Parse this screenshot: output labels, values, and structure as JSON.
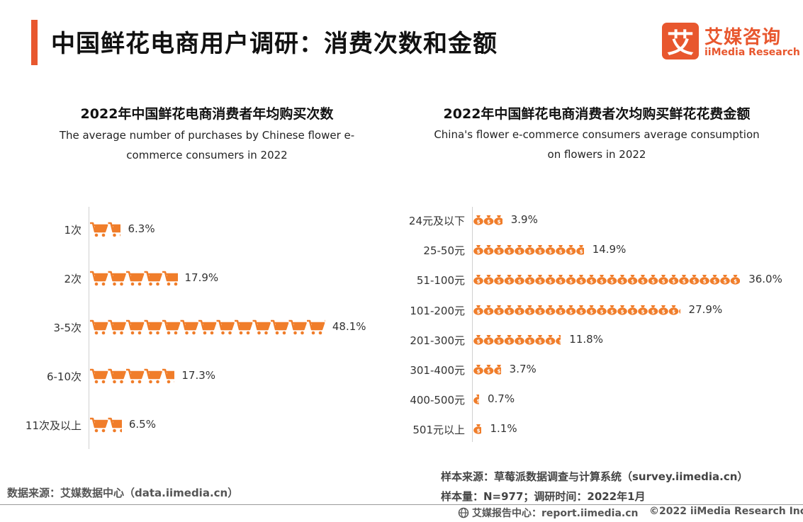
{
  "page": {
    "title": "中国鲜花电商用户调研：消费次数和金额"
  },
  "brand": {
    "logo_char": "艾",
    "name_cn": "艾媒咨询",
    "name_en": "iiMedia Research",
    "accent_color": "#e8572e",
    "icon_color": "#f07d2a"
  },
  "chart_data": [
    {
      "type": "bar",
      "orientation": "horizontal",
      "icon": "shopping-cart-icon",
      "title": "2022年中国鲜花电商消费者年均购买次数",
      "subtitle": "The average number of purchases by Chinese flower e-commerce consumers in 2022",
      "categories": [
        "1次",
        "2次",
        "3-5次",
        "6-10次",
        "11次及以上"
      ],
      "values": [
        6.3,
        17.9,
        48.1,
        17.3,
        6.5
      ],
      "value_labels": [
        "6.3%",
        "17.9%",
        "48.1%",
        "17.3%",
        "6.5%"
      ],
      "unit": "%",
      "xlabel": "",
      "ylabel": ""
    },
    {
      "type": "bar",
      "orientation": "horizontal",
      "icon": "money-bag-icon",
      "title": "2022年中国鲜花电商消费者次均购买鲜花花费金额",
      "subtitle": "China's flower e-commerce consumers average consumption on flowers in 2022",
      "categories": [
        "24元及以下",
        "25-50元",
        "51-100元",
        "101-200元",
        "201-300元",
        "301-400元",
        "400-500元",
        "501元以上"
      ],
      "values": [
        3.9,
        14.9,
        36.0,
        27.9,
        11.8,
        3.7,
        0.7,
        1.1
      ],
      "value_labels": [
        "3.9%",
        "14.9%",
        "36.0%",
        "27.9%",
        "11.8%",
        "3.7%",
        "0.7%",
        "1.1%"
      ],
      "unit": "%",
      "xlabel": "",
      "ylabel": ""
    }
  ],
  "source": {
    "data_source": "数据来源：艾媒数据中心（data.iimedia.cn）",
    "sample_source": "样本来源：草莓派数据调查与计算系统（survey.iimedia.cn）",
    "sample_size": "样本量：N=977；调研时间：2022年1月"
  },
  "footer": {
    "report_center": "艾媒报告中心：report.iimedia.cn",
    "copyright": "©2022 iiMedia Research Inc"
  }
}
